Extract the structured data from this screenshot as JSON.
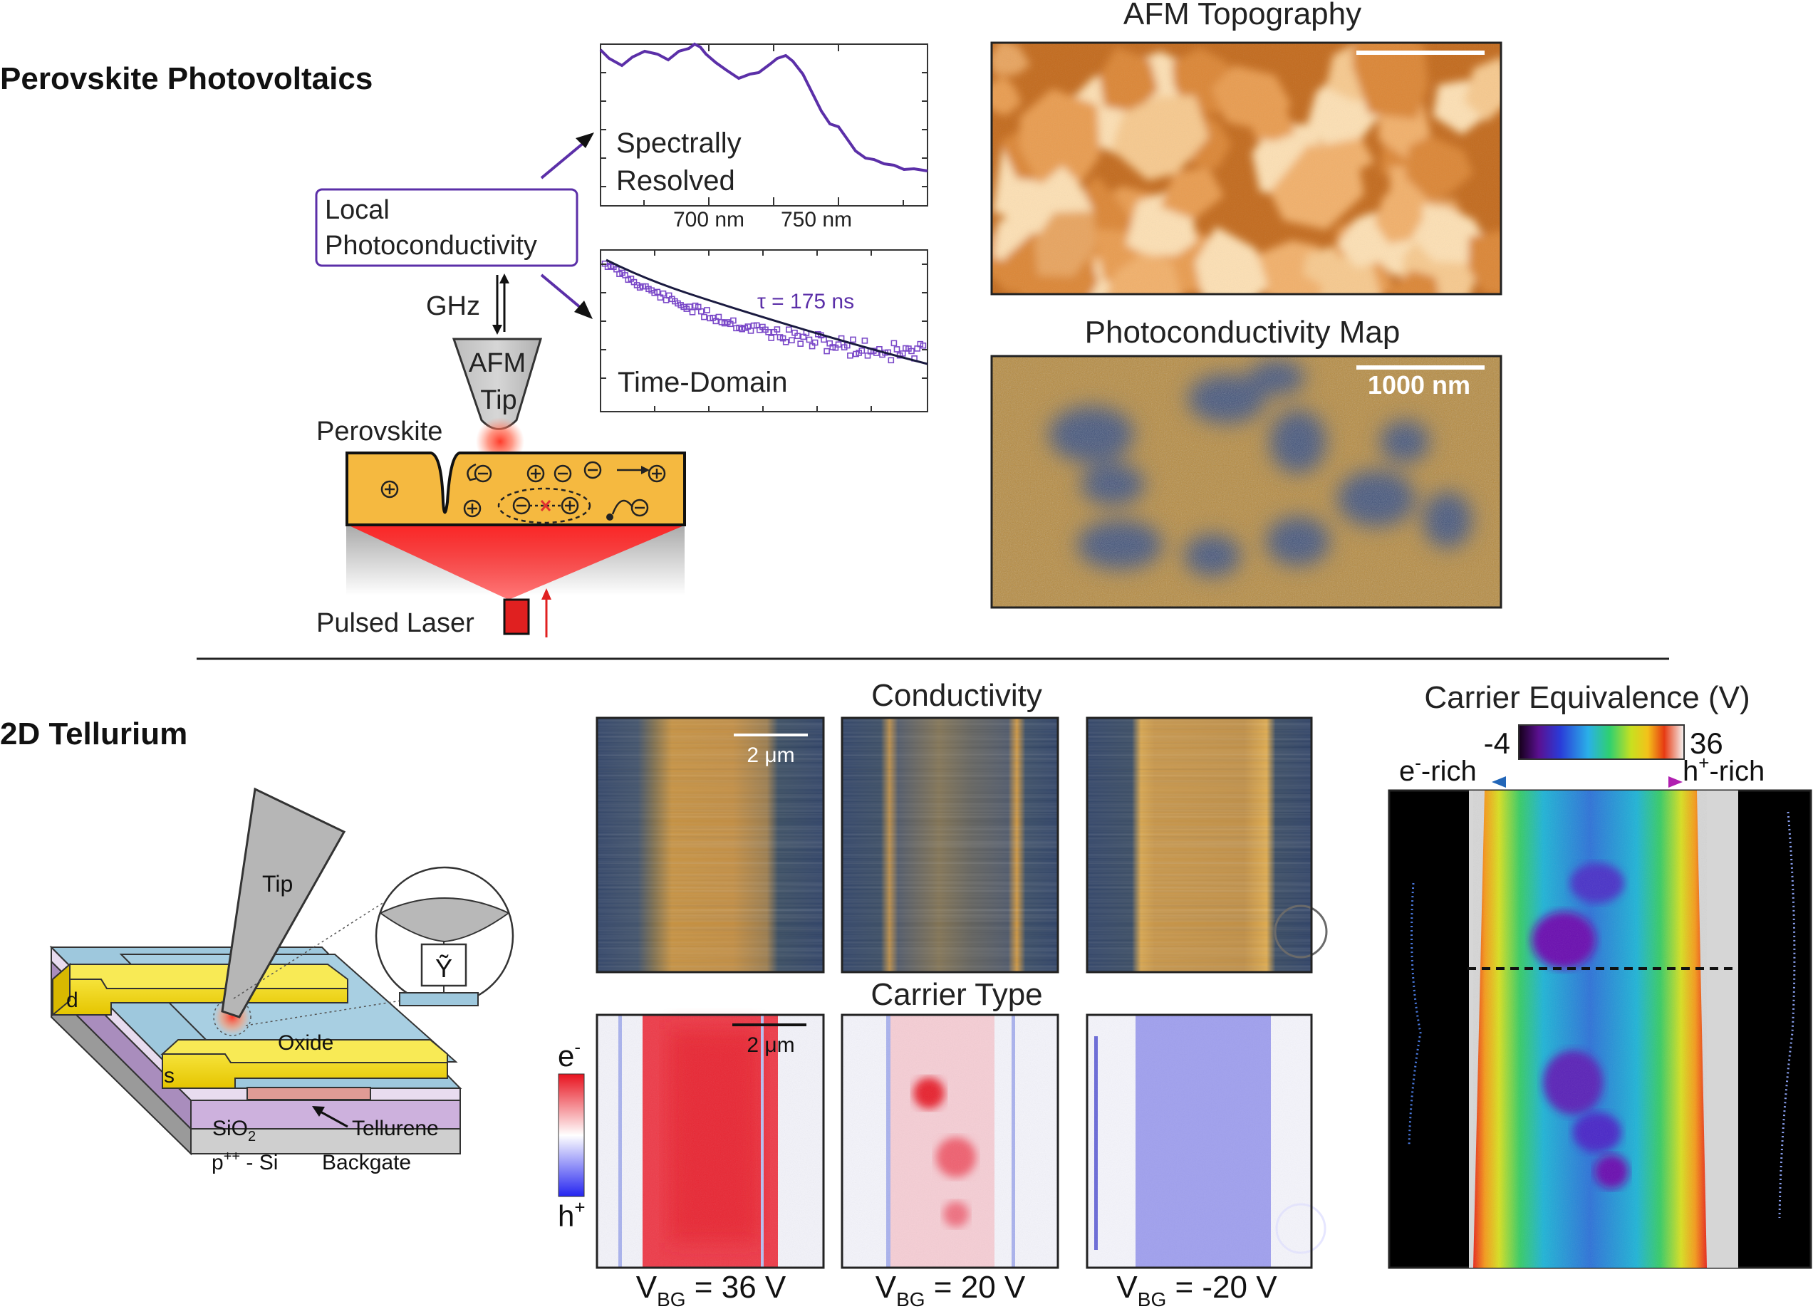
{
  "top_section": {
    "title": "Perovskite Photovoltaics",
    "local_photoconductivity": [
      "Local",
      "Photoconductivity"
    ],
    "ghz_label": "GHz",
    "afm_tip_label": [
      "AFM",
      "Tip"
    ],
    "perovskite_label": "Perovskite",
    "pulsed_laser_label": "Pulsed Laser",
    "spectral_panel": {
      "label": [
        "Spectrally",
        "Resolved"
      ],
      "tick_labels": [
        "700 nm",
        "750 nm"
      ]
    },
    "time_panel": {
      "label": "Time-Domain",
      "tau_label": "τ = 175 ns"
    },
    "afm_topography": {
      "title": "AFM Topography"
    },
    "photoconductivity_map": {
      "title": "Photoconductivity Map",
      "scale_label": "1000 nm"
    },
    "colors": {
      "accent_purple": "#5b2fa8",
      "perovskite_orange": "#f5b940",
      "laser_red": "#e02020"
    }
  },
  "bottom_section": {
    "title": "2D Tellurium",
    "device": {
      "tip_label": "Tip",
      "oxide_label": "Oxide",
      "tellurene_label": "Tellurene",
      "sio2_label": "SiO",
      "sio2_sub": "2",
      "si_label_prefix": "p",
      "si_label_sup": "++",
      "si_label_suffix": " - Si",
      "backgate_label": "Backgate",
      "drain_label": "d",
      "source_label": "s",
      "admittance_label": "Ỹ"
    },
    "conductivity": {
      "title": "Conductivity",
      "scale_label": "2 μm"
    },
    "carrier_type": {
      "title": "Carrier Type",
      "scale_label": "2 μm",
      "colorbar_top": "e",
      "colorbar_top_sup": "-",
      "colorbar_bottom": "h",
      "colorbar_bottom_sup": "+"
    },
    "vbg_labels": [
      {
        "prefix": "V",
        "sub": "BG",
        "value": " = 36 V"
      },
      {
        "prefix": "V",
        "sub": "BG",
        "value": " = 20 V"
      },
      {
        "prefix": "V",
        "sub": "BG",
        "value": " = -20 V"
      }
    ],
    "carrier_equivalence": {
      "title": "Carrier Equivalence (V)",
      "cbar_min": "-4",
      "cbar_max": "36",
      "e_rich": "e",
      "e_rich_sup": "-",
      "e_rich_suffix": "-rich",
      "h_rich": "h",
      "h_rich_sup": "+",
      "h_rich_suffix": "-rich"
    }
  }
}
